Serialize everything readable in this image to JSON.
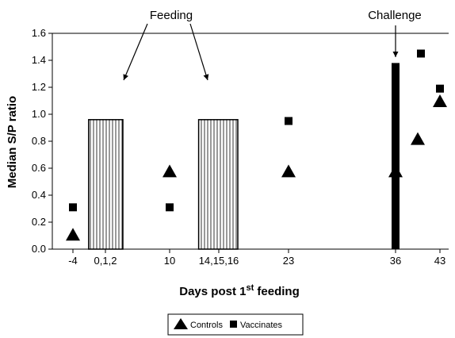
{
  "chart_data": {
    "type": "scatter",
    "ylabel": "Median S/P ratio",
    "xlabel_main": "Days post 1",
    "xlabel_sup": "st",
    "xlabel_tail": " feeding",
    "ylim": [
      0,
      1.6
    ],
    "y_ticks": [
      "0.0",
      "0.2",
      "0.4",
      "0.6",
      "0.8",
      "1.0",
      "1.2",
      "1.4",
      "1.6"
    ],
    "x_ticks": [
      {
        "label": "-4",
        "day": -4
      },
      {
        "label": "0,1,2",
        "day": 1
      },
      {
        "label": "10",
        "day": 10
      },
      {
        "label": "14,15,16",
        "day": 15
      },
      {
        "label": "23",
        "day": 23
      },
      {
        "label": "36",
        "day": 36
      },
      {
        "label": "43",
        "day": 43
      }
    ],
    "series": [
      {
        "name": "Controls",
        "marker": "triangle",
        "points": [
          {
            "day": -4,
            "value": 0.11
          },
          {
            "day": 10,
            "value": 0.58
          },
          {
            "day": 23,
            "value": 0.58
          },
          {
            "day": 36,
            "value": 0.58
          },
          {
            "day": 39.5,
            "value": 0.82
          },
          {
            "day": 43,
            "value": 1.1
          }
        ]
      },
      {
        "name": "Vaccinates",
        "marker": "square",
        "points": [
          {
            "day": -4,
            "value": 0.31
          },
          {
            "day": 10,
            "value": 0.31
          },
          {
            "day": 23,
            "value": 0.95
          },
          {
            "day": 36,
            "value": 1.07
          },
          {
            "day": 40,
            "value": 1.45
          },
          {
            "day": 43,
            "value": 1.19
          }
        ]
      }
    ],
    "feeding_periods": [
      {
        "start": 0,
        "end": 2
      },
      {
        "start": 14,
        "end": 16
      }
    ],
    "challenge": {
      "day": 36,
      "top": 1.38
    },
    "annotations": {
      "feeding": "Feeding",
      "challenge": "Challenge"
    },
    "grid": false,
    "legend_position": "bottom"
  }
}
